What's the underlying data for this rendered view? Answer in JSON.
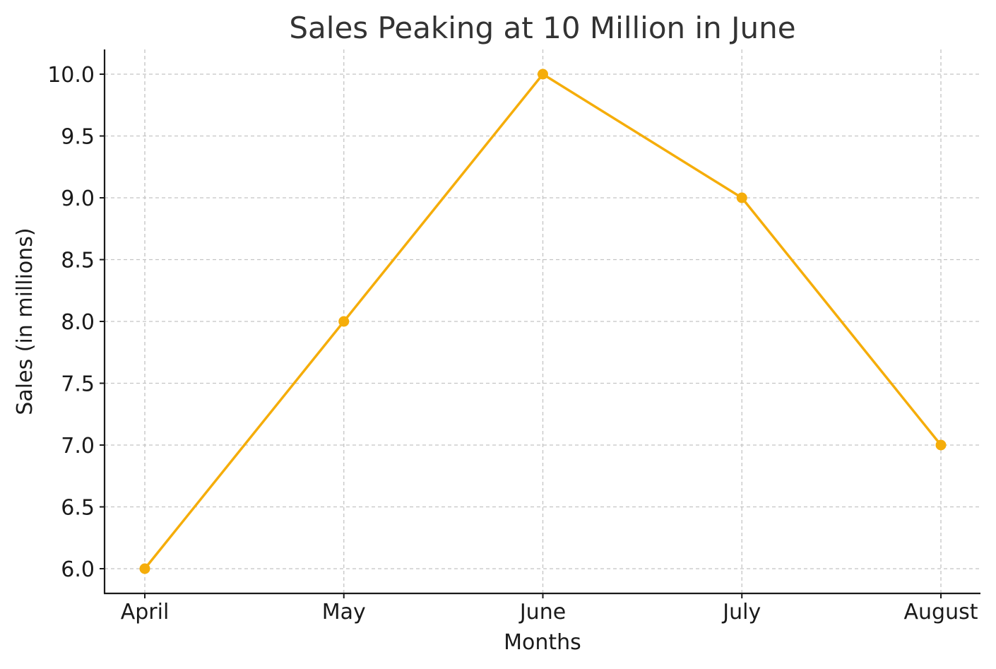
{
  "chart_data": {
    "type": "line",
    "title": "Sales Peaking at 10 Million in June",
    "xlabel": "Months",
    "ylabel": "Sales (in millions)",
    "categories": [
      "April",
      "May",
      "June",
      "July",
      "August"
    ],
    "series": [
      {
        "values": [
          6,
          8,
          10,
          9,
          7
        ],
        "color": "#f5ad0a",
        "marker": "circle"
      }
    ],
    "ylim": [
      5.8,
      10.2
    ],
    "yticks": [
      6.0,
      6.5,
      7.0,
      7.5,
      8.0,
      8.5,
      9.0,
      9.5,
      10.0
    ],
    "ytick_labels": [
      "6.0",
      "6.5",
      "7.0",
      "7.5",
      "8.0",
      "8.5",
      "9.0",
      "9.5",
      "10.0"
    ],
    "grid": true,
    "grid_style": "dashed"
  }
}
